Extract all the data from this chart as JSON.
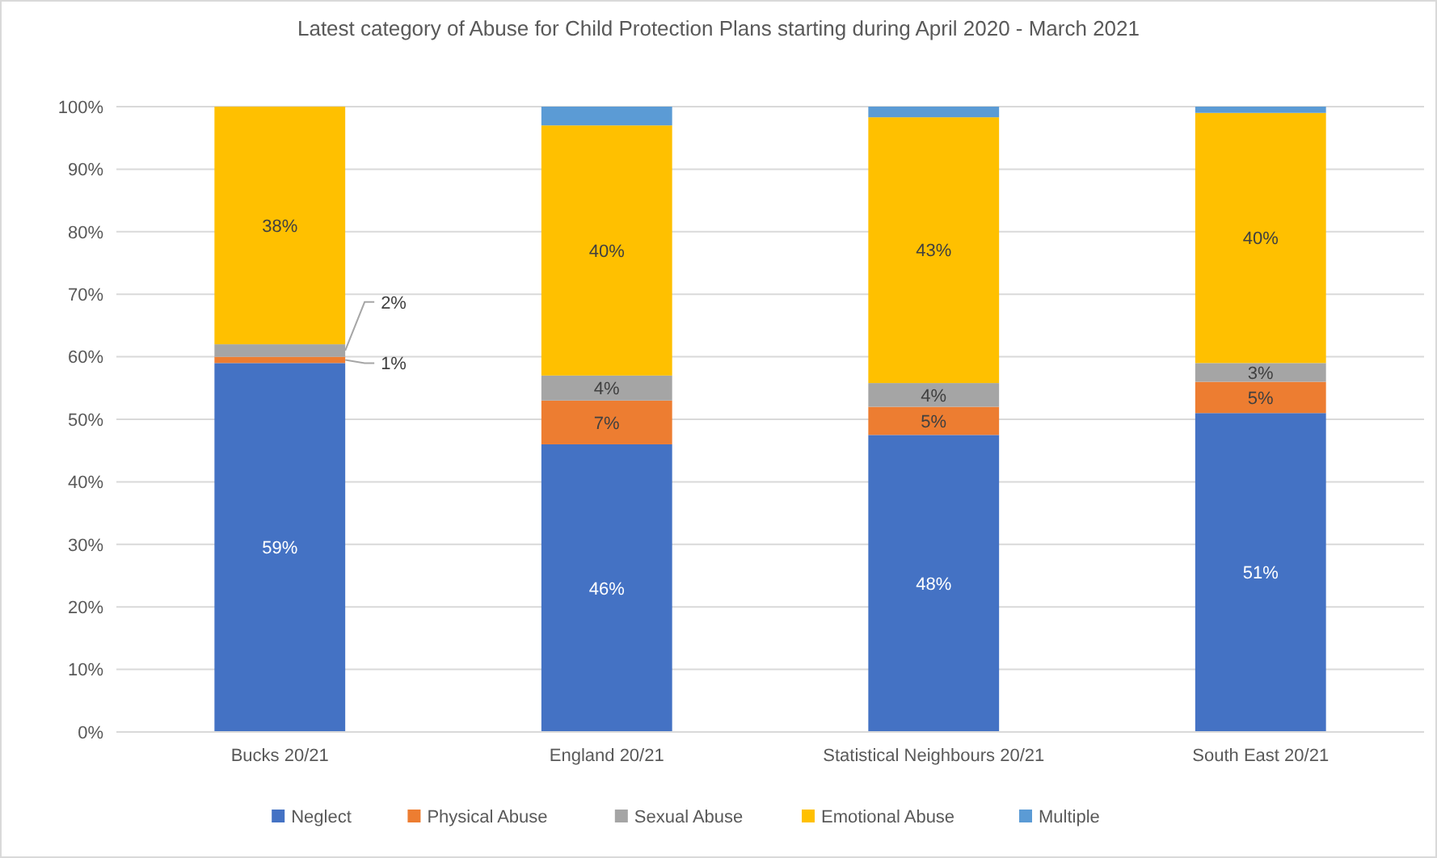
{
  "chart_data": {
    "type": "bar",
    "stacked": true,
    "title": "Latest category of Abuse for Child Protection Plans starting during April 2020 - March 2021",
    "categories": [
      "Bucks 20/21",
      "England 20/21",
      "Statistical Neighbours 20/21",
      "South East 20/21"
    ],
    "series": [
      {
        "name": "Neglect",
        "color": "#4472c4",
        "values": [
          59,
          46,
          47.5,
          51
        ],
        "value_labels": [
          "59%",
          "46%",
          "48%",
          "51%"
        ]
      },
      {
        "name": "Physical Abuse",
        "color": "#ed7d31",
        "values": [
          1,
          7,
          4.5,
          5
        ],
        "value_labels": [
          "1%",
          "7%",
          "5%",
          "5%"
        ]
      },
      {
        "name": "Sexual Abuse",
        "color": "#a5a5a5",
        "values": [
          2,
          4,
          3.8,
          3
        ],
        "value_labels": [
          "2%",
          "4%",
          "4%",
          "3%"
        ]
      },
      {
        "name": "Emotional Abuse",
        "color": "#ffc000",
        "values": [
          38,
          40,
          42.5,
          40
        ],
        "value_labels": [
          "38%",
          "40%",
          "43%",
          "40%"
        ]
      },
      {
        "name": "Multiple",
        "color": "#5b9bd5",
        "values": [
          0,
          3,
          1.7,
          1
        ]
      }
    ],
    "ylim": [
      0,
      100
    ],
    "yticks": [
      {
        "value": 0,
        "label": "0%"
      },
      {
        "value": 10,
        "label": "10%"
      },
      {
        "value": 20,
        "label": "20%"
      },
      {
        "value": 30,
        "label": "30%"
      },
      {
        "value": 40,
        "label": "40%"
      },
      {
        "value": 50,
        "label": "50%"
      },
      {
        "value": 60,
        "label": "60%"
      },
      {
        "value": 70,
        "label": "70%"
      },
      {
        "value": 80,
        "label": "80%"
      },
      {
        "value": 90,
        "label": "90%"
      },
      {
        "value": 100,
        "label": "100%"
      }
    ],
    "grid": "y",
    "legend": "bottom"
  }
}
